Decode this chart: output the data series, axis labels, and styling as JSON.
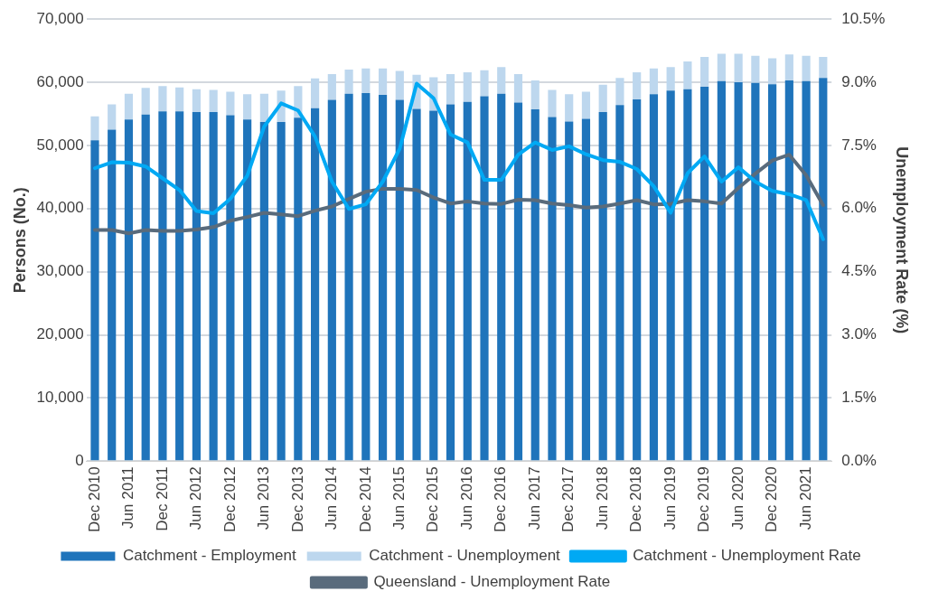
{
  "chart_data": {
    "type": "bar",
    "stacked": true,
    "ylabel": "Persons (No.)",
    "y2label": "Unemployment Rate (%)",
    "categories": [
      "Dec 2010",
      null,
      "Jun 2011",
      null,
      "Dec 2011",
      null,
      "Jun 2012",
      null,
      "Dec 2012",
      null,
      "Jun 2013",
      null,
      "Dec 2013",
      null,
      "Jun 2014",
      null,
      "Dec 2014",
      null,
      "Jun 2015",
      null,
      "Dec 2015",
      null,
      "Jun 2016",
      null,
      "Dec 2016",
      null,
      "Jun 2017",
      null,
      "Dec 2017",
      null,
      "Jun 2018",
      null,
      "Dec 2018",
      null,
      "Jun 2019",
      null,
      "Dec 2019",
      null,
      "Jun 2020",
      null,
      "Dec 2020",
      null,
      "Jun 2021",
      null
    ],
    "series": [
      {
        "name": "Catchment - Employment",
        "color": "#1f74bb",
        "values": [
          50800,
          52500,
          54100,
          54900,
          55400,
          55400,
          55300,
          55300,
          54800,
          54100,
          53700,
          53700,
          54400,
          55900,
          57200,
          58200,
          58300,
          58000,
          57200,
          55800,
          55500,
          56500,
          56900,
          57800,
          58200,
          56800,
          55700,
          54500,
          53800,
          54200,
          55300,
          56400,
          57300,
          58100,
          58700,
          58900,
          59300,
          60200,
          60000,
          59900,
          59700,
          60300,
          60200,
          60700
        ]
      },
      {
        "name": "Catchment - Unemployment",
        "color": "#bdd7ee",
        "values": [
          3800,
          4000,
          4100,
          4200,
          4000,
          3800,
          3600,
          3500,
          3700,
          4000,
          4500,
          5000,
          5000,
          4700,
          4100,
          3800,
          3900,
          4200,
          4600,
          5400,
          5300,
          4800,
          4700,
          4100,
          4200,
          4500,
          4600,
          4300,
          4300,
          4300,
          4300,
          4300,
          4300,
          4100,
          3700,
          4400,
          4700,
          4300,
          4500,
          4300,
          4100,
          4100,
          4000,
          3300
        ]
      },
      {
        "name": "Catchment - Unemployment Rate",
        "type": "line",
        "axis": "y2",
        "color": "#00a9f4",
        "values": [
          6.96,
          7.1,
          7.09,
          7.0,
          6.72,
          6.44,
          5.94,
          5.89,
          6.23,
          6.78,
          7.95,
          8.5,
          8.33,
          7.71,
          6.64,
          5.99,
          6.1,
          6.64,
          7.42,
          8.97,
          8.62,
          7.76,
          7.57,
          6.68,
          6.68,
          7.28,
          7.57,
          7.39,
          7.48,
          7.29,
          7.15,
          7.11,
          6.94,
          6.53,
          5.9,
          6.84,
          7.24,
          6.64,
          6.98,
          6.64,
          6.42,
          6.34,
          6.2,
          5.27
        ]
      },
      {
        "name": "Queensland - Unemployment Rate",
        "type": "line",
        "axis": "y2",
        "color": "#596b7c",
        "values": [
          5.49,
          5.49,
          5.41,
          5.49,
          5.47,
          5.47,
          5.5,
          5.56,
          5.71,
          5.8,
          5.9,
          5.86,
          5.82,
          5.95,
          6.05,
          6.23,
          6.4,
          6.47,
          6.47,
          6.44,
          6.26,
          6.12,
          6.17,
          6.12,
          6.11,
          6.21,
          6.2,
          6.12,
          6.08,
          6.02,
          6.05,
          6.12,
          6.2,
          6.1,
          6.11,
          6.2,
          6.17,
          6.12,
          6.49,
          6.83,
          7.14,
          7.28,
          6.79,
          6.08
        ]
      }
    ],
    "ylim": [
      0,
      70000
    ],
    "yticks": [
      {
        "value": 0,
        "label": "0"
      },
      {
        "value": 10000,
        "label": "10,000"
      },
      {
        "value": 20000,
        "label": "20,000"
      },
      {
        "value": 30000,
        "label": "30,000"
      },
      {
        "value": 40000,
        "label": "40,000"
      },
      {
        "value": 50000,
        "label": "50,000"
      },
      {
        "value": 60000,
        "label": "60,000"
      },
      {
        "value": 70000,
        "label": "70,000"
      }
    ],
    "y2lim": [
      0,
      10.5
    ],
    "y2ticks": [
      {
        "value": 0,
        "label": "0.0%"
      },
      {
        "value": 1.5,
        "label": "1.5%"
      },
      {
        "value": 3,
        "label": "3.0%"
      },
      {
        "value": 4.5,
        "label": "4.5%"
      },
      {
        "value": 6,
        "label": "6.0%"
      },
      {
        "value": 7.5,
        "label": "7.5%"
      },
      {
        "value": 9,
        "label": "9.0%"
      },
      {
        "value": 10.5,
        "label": "10.5%"
      }
    ],
    "grid": "y",
    "legend": "bottom"
  }
}
